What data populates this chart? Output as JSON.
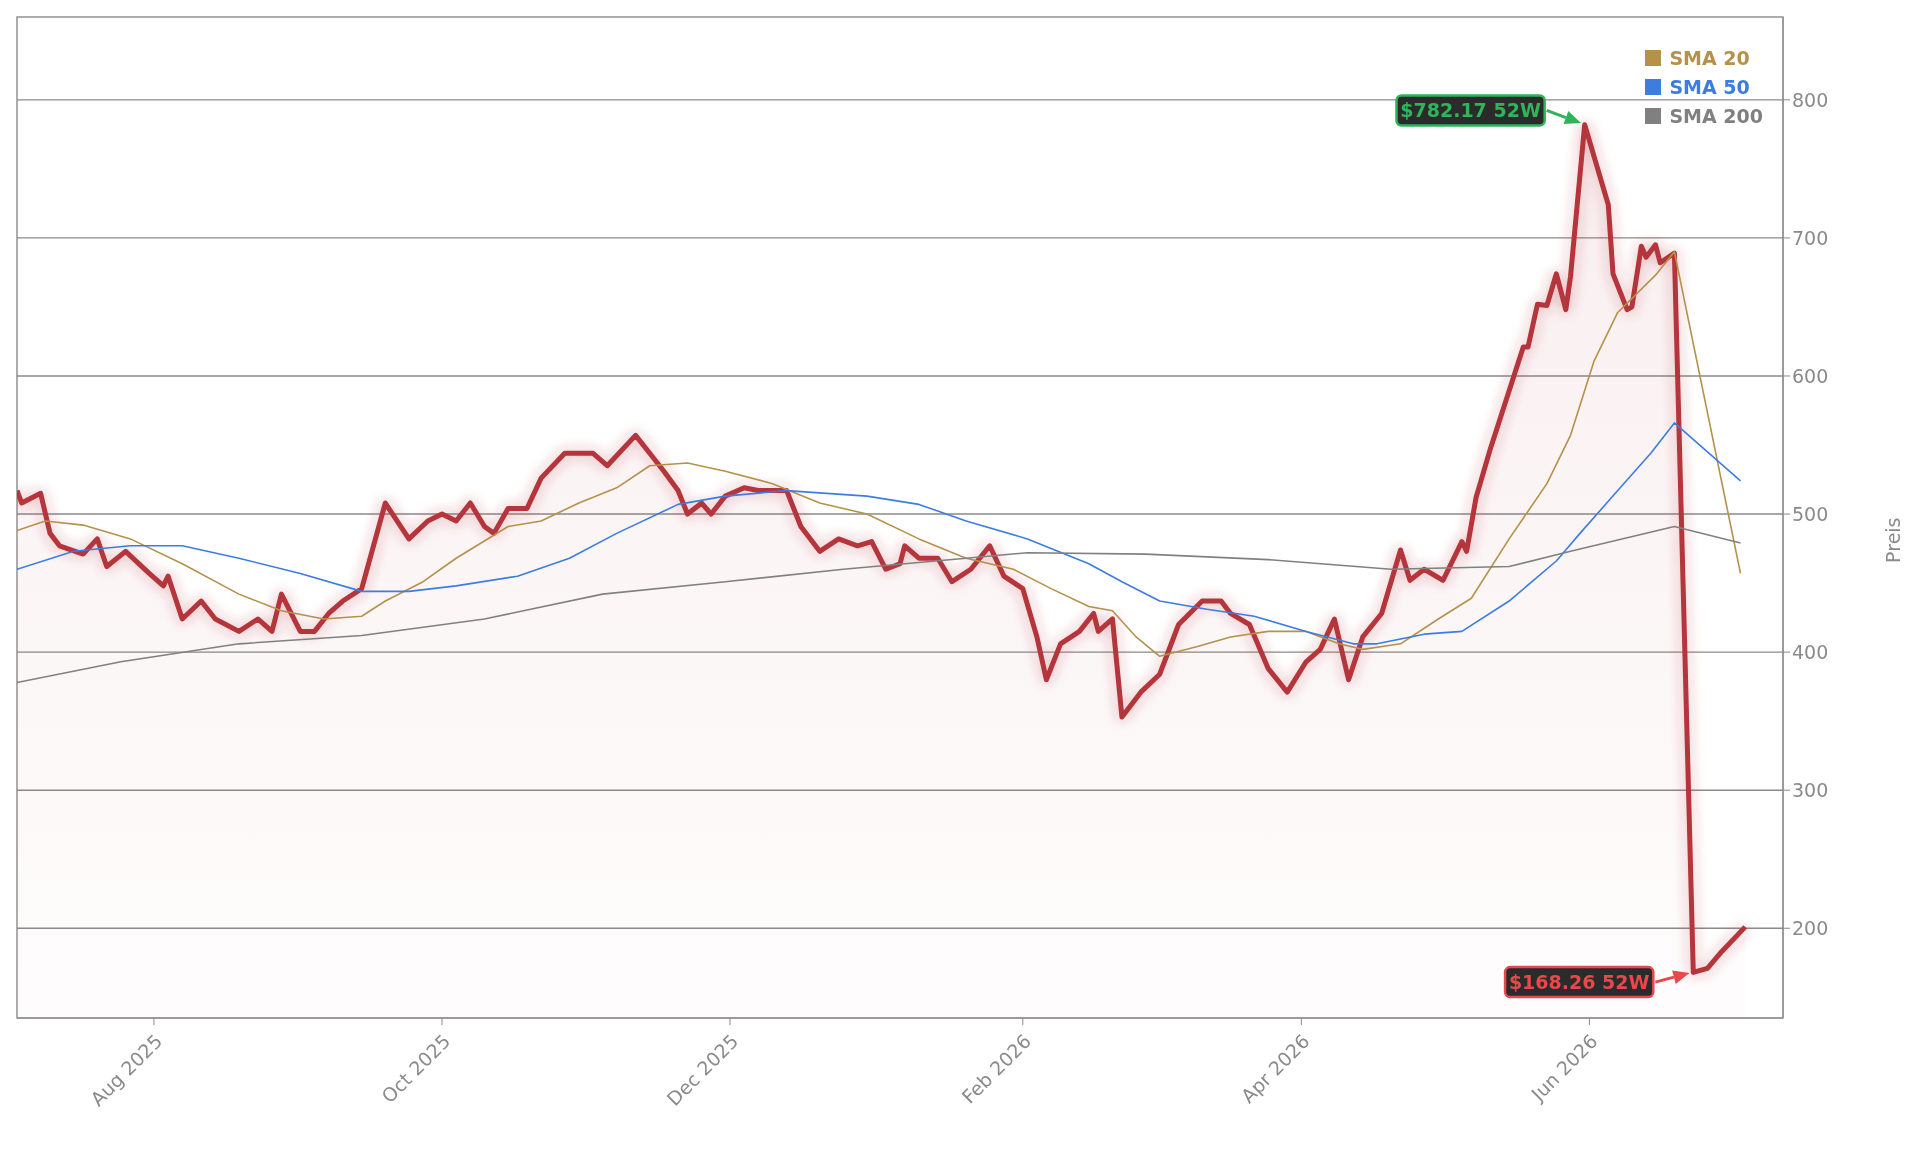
{
  "chart_data": {
    "type": "line",
    "ylabel": "Preis",
    "xlim": [
      "2025-07-03",
      "2026-07-12"
    ],
    "ylim": [
      135,
      860
    ],
    "yticks": [
      200,
      300,
      400,
      500,
      600,
      700,
      800
    ],
    "xticks": [
      {
        "value": "2025-08-01",
        "label": "Aug 2025"
      },
      {
        "value": "2025-10-01",
        "label": "Oct 2025"
      },
      {
        "value": "2025-12-01",
        "label": "Dec 2025"
      },
      {
        "value": "2026-02-01",
        "label": "Feb 2026"
      },
      {
        "value": "2026-04-01",
        "label": "Apr 2026"
      },
      {
        "value": "2026-06-01",
        "label": "Jun 2026"
      }
    ],
    "grid": "y",
    "legend": "top right",
    "annotations": [
      {
        "text": "$782.17 52W",
        "x": "2026-05-31",
        "y": 782.17
      },
      {
        "text": "$168.26 52W",
        "x": "2026-06-23",
        "y": 168.26
      }
    ],
    "series": [
      {
        "type": "area",
        "color": "#b5343c",
        "x": [
          "2025-07-03",
          "2025-07-04",
          "2025-07-08",
          "2025-07-10",
          "2025-07-12",
          "2025-07-17",
          "2025-07-20",
          "2025-07-22",
          "2025-07-26",
          "2025-07-31",
          "2025-08-03",
          "2025-08-04",
          "2025-08-07",
          "2025-08-11",
          "2025-08-14",
          "2025-08-19",
          "2025-08-23",
          "2025-08-26",
          "2025-08-28",
          "2025-09-01",
          "2025-09-04",
          "2025-09-07",
          "2025-09-10",
          "2025-09-14",
          "2025-09-19",
          "2025-09-24",
          "2025-09-28",
          "2025-10-01",
          "2025-10-04",
          "2025-10-07",
          "2025-10-10",
          "2025-10-12",
          "2025-10-15",
          "2025-10-19",
          "2025-10-22",
          "2025-10-27",
          "2025-11-02",
          "2025-11-05",
          "2025-11-11",
          "2025-11-14",
          "2025-11-17",
          "2025-11-20",
          "2025-11-22",
          "2025-11-25",
          "2025-11-27",
          "2025-11-30",
          "2025-12-04",
          "2025-12-07",
          "2025-12-13",
          "2025-12-16",
          "2025-12-20",
          "2025-12-24",
          "2025-12-28",
          "2025-12-31",
          "2026-01-03",
          "2026-01-06",
          "2026-01-07",
          "2026-01-10",
          "2026-01-14",
          "2026-01-17",
          "2026-01-21",
          "2026-01-25",
          "2026-01-28",
          "2026-02-01",
          "2026-02-04",
          "2026-02-06",
          "2026-02-09",
          "2026-02-13",
          "2026-02-16",
          "2026-02-17",
          "2026-02-20",
          "2026-02-22",
          "2026-02-26",
          "2026-03-02",
          "2026-03-06",
          "2026-03-11",
          "2026-03-15",
          "2026-03-17",
          "2026-03-21",
          "2026-03-25",
          "2026-03-29",
          "2026-04-02",
          "2026-04-05",
          "2026-04-08",
          "2026-04-11",
          "2026-04-14",
          "2026-04-18",
          "2026-04-22",
          "2026-04-24",
          "2026-04-27",
          "2026-05-01",
          "2026-05-05",
          "2026-05-06",
          "2026-05-08",
          "2026-05-11",
          "2026-05-18",
          "2026-05-19",
          "2026-05-21",
          "2026-05-23",
          "2026-05-25",
          "2026-05-27",
          "2026-05-28",
          "2026-05-31",
          "2026-06-05",
          "2026-06-06",
          "2026-06-09",
          "2026-06-10",
          "2026-06-12",
          "2026-06-13",
          "2026-06-15",
          "2026-06-16",
          "2026-06-19",
          "2026-06-23",
          "2026-06-26",
          "2026-06-29",
          "2026-07-04"
        ],
        "values": [
          517,
          508,
          515,
          486,
          477,
          471,
          482,
          462,
          473,
          457,
          448,
          455,
          424,
          437,
          424,
          415,
          424,
          415,
          442,
          415,
          415,
          428,
          437,
          446,
          508,
          482,
          495,
          500,
          495,
          508,
          491,
          486,
          504,
          504,
          526,
          544,
          544,
          535,
          557,
          544,
          531,
          517,
          500,
          508,
          500,
          513,
          519,
          517,
          517,
          491,
          473,
          482,
          477,
          480,
          460,
          464,
          477,
          468,
          468,
          451,
          460,
          477,
          455,
          446,
          411,
          380,
          406,
          415,
          428,
          415,
          424,
          353,
          371,
          384,
          420,
          437,
          437,
          428,
          420,
          388,
          371,
          393,
          402,
          424,
          380,
          411,
          428,
          474,
          452,
          460,
          452,
          480,
          473,
          512,
          547,
          621,
          621,
          652,
          651,
          674,
          648,
          672,
          782,
          724,
          674,
          648,
          650,
          694,
          686,
          695,
          682,
          689,
          168,
          171,
          183,
          201
        ]
      },
      {
        "name": "SMA 20",
        "color": "#b5914a",
        "x": [
          "2025-07-03",
          "2025-07-09",
          "2025-07-17",
          "2025-07-27",
          "2025-08-07",
          "2025-08-19",
          "2025-08-28",
          "2025-09-06",
          "2025-09-14",
          "2025-09-19",
          "2025-09-27",
          "2025-10-04",
          "2025-10-15",
          "2025-10-22",
          "2025-10-30",
          "2025-11-07",
          "2025-11-14",
          "2025-11-22",
          "2025-11-30",
          "2025-12-10",
          "2025-12-20",
          "2025-12-30",
          "2026-01-10",
          "2026-01-20",
          "2026-01-30",
          "2026-02-07",
          "2026-02-15",
          "2026-02-20",
          "2026-02-25",
          "2026-03-02",
          "2026-03-10",
          "2026-03-17",
          "2026-03-25",
          "2026-04-02",
          "2026-04-09",
          "2026-04-14",
          "2026-04-22",
          "2026-04-30",
          "2026-05-07",
          "2026-05-15",
          "2026-05-23",
          "2026-05-28",
          "2026-06-02",
          "2026-06-07",
          "2026-06-15",
          "2026-06-19",
          "2026-07-03"
        ],
        "values": [
          488,
          495,
          492,
          482,
          464,
          442,
          430,
          424,
          426,
          437,
          451,
          468,
          491,
          495,
          508,
          519,
          535,
          537,
          531,
          522,
          508,
          500,
          482,
          468,
          460,
          446,
          433,
          430,
          411,
          397,
          404,
          411,
          415,
          415,
          406,
          402,
          406,
          424,
          439,
          482,
          522,
          557,
          611,
          646,
          673,
          690,
          457
        ]
      },
      {
        "name": "SMA 50",
        "color": "#3b7de0",
        "x": [
          "2025-07-03",
          "2025-07-15",
          "2025-07-27",
          "2025-08-07",
          "2025-08-19",
          "2025-09-01",
          "2025-09-14",
          "2025-09-24",
          "2025-10-04",
          "2025-10-17",
          "2025-10-28",
          "2025-11-07",
          "2025-11-20",
          "2025-11-30",
          "2025-12-13",
          "2025-12-30",
          "2026-01-10",
          "2026-01-20",
          "2026-02-02",
          "2026-02-15",
          "2026-02-22",
          "2026-03-02",
          "2026-03-12",
          "2026-03-22",
          "2026-04-02",
          "2026-04-12",
          "2026-04-17",
          "2026-04-27",
          "2026-05-05",
          "2026-05-15",
          "2026-05-25",
          "2026-05-30",
          "2026-06-07",
          "2026-06-14",
          "2026-06-19",
          "2026-07-03"
        ],
        "values": [
          460,
          473,
          477,
          477,
          468,
          457,
          444,
          444,
          448,
          455,
          468,
          486,
          507,
          513,
          517,
          513,
          507,
          495,
          482,
          464,
          451,
          437,
          431,
          426,
          415,
          406,
          406,
          413,
          415,
          437,
          466,
          486,
          517,
          544,
          566,
          524
        ]
      },
      {
        "name": "SMA 200",
        "color": "#808080",
        "x": [
          "2025-07-03",
          "2025-07-25",
          "2025-08-19",
          "2025-09-14",
          "2025-10-10",
          "2025-11-04",
          "2025-11-30",
          "2025-12-25",
          "2026-01-20",
          "2026-02-02",
          "2026-02-27",
          "2026-03-25",
          "2026-04-20",
          "2026-05-15",
          "2026-05-28",
          "2026-06-19",
          "2026-07-03"
        ],
        "values": [
          378,
          393,
          406,
          412,
          424,
          442,
          451,
          460,
          468,
          472,
          471,
          467,
          460,
          462,
          473,
          491,
          479
        ]
      }
    ]
  }
}
